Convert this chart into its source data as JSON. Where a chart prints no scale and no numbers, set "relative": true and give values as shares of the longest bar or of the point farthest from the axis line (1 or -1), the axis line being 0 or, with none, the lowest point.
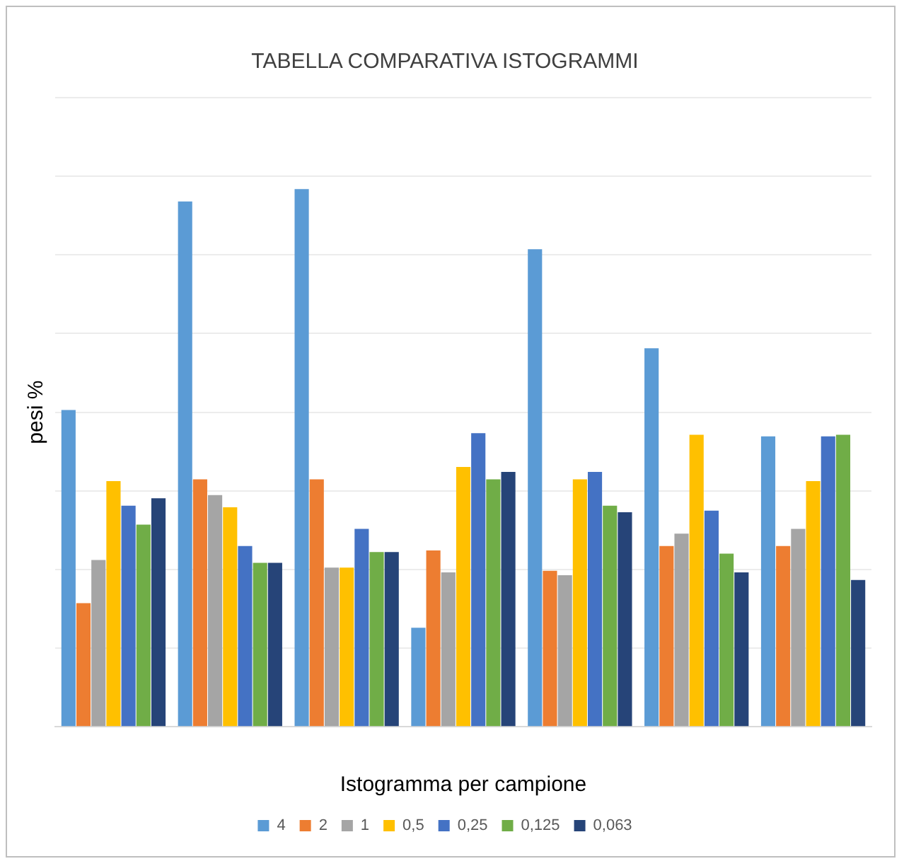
{
  "chart_data": {
    "type": "bar",
    "title": "TABELLA COMPARATIVA ISTOGRAMMI",
    "xlabel": "Istogramma per campione",
    "ylabel": "pesi %",
    "categories": [
      null,
      null,
      null,
      null,
      null,
      null,
      null
    ],
    "relative": true,
    "grid": "y",
    "legend": "bottom",
    "series": [
      {
        "name": "4",
        "color": "#5b9bd5",
        "values": [
          0.589,
          0.977,
          1,
          0.184,
          0.888,
          0.704,
          0.54
        ]
      },
      {
        "name": "2",
        "color": "#ed7d31",
        "values": [
          0.23,
          0.46,
          0.46,
          0.328,
          0.29,
          0.336,
          0.336
        ]
      },
      {
        "name": "1",
        "color": "#a5a5a5",
        "values": [
          0.31,
          0.431,
          0.296,
          0.287,
          0.282,
          0.359,
          0.368
        ]
      },
      {
        "name": "0,5",
        "color": "#ffc000",
        "values": [
          0.457,
          0.408,
          0.296,
          0.483,
          0.46,
          0.543,
          0.457
        ]
      },
      {
        "name": "0,25",
        "color": "#4472c4",
        "values": [
          0.411,
          0.336,
          0.368,
          0.546,
          0.474,
          0.402,
          0.54
        ]
      },
      {
        "name": "0,125",
        "color": "#70ad47",
        "values": [
          0.376,
          0.305,
          0.325,
          0.46,
          0.411,
          0.322,
          0.543
        ]
      },
      {
        "name": "0,063",
        "color": "#264478",
        "values": [
          0.425,
          0.305,
          0.325,
          0.474,
          0.399,
          0.287,
          0.273
        ]
      }
    ]
  }
}
